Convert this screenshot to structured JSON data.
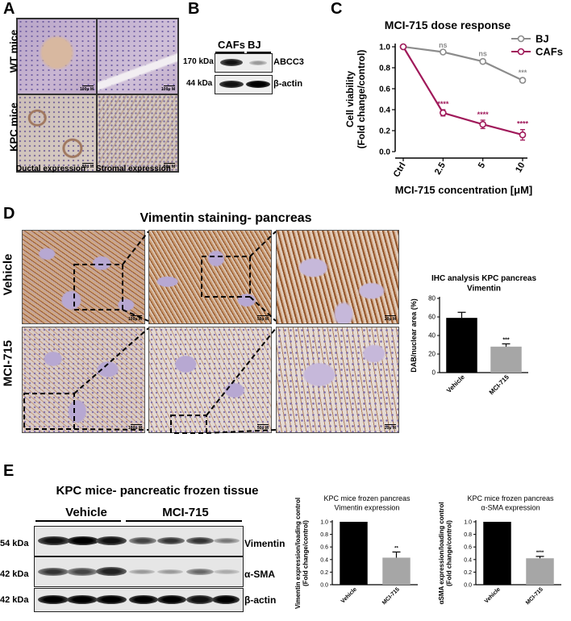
{
  "panels": {
    "A": "A",
    "B": "B",
    "C": "C",
    "D": "D",
    "E": "E"
  },
  "panel_a": {
    "row_labels": [
      "WT mice",
      "KPC mice"
    ],
    "col_labels": [
      "Ductal expression",
      "Stromal expression"
    ],
    "scalebars": [
      "100μ M",
      "100μ M",
      "50μ M",
      "50μ M"
    ]
  },
  "panel_b": {
    "columns": [
      "CAFs",
      "BJ"
    ],
    "rows": [
      {
        "mw": "170 kDa",
        "protein": "ABCC3"
      },
      {
        "mw": "44 kDa",
        "protein": "β-actin"
      }
    ]
  },
  "panel_d": {
    "title": "Vimentin staining- pancreas",
    "row_labels": [
      "Vehicle",
      "MCI-715"
    ],
    "scalebars": [
      "100μ M",
      "50μ M",
      "20μ M",
      "100μ M",
      "50μ M",
      "20μ M"
    ]
  },
  "panel_e": {
    "title": "KPC mice- pancreatic frozen tissue",
    "groups": [
      "Vehicle",
      "MCI-715"
    ],
    "rows": [
      {
        "mw": "54 kDa",
        "protein": "Vimentin"
      },
      {
        "mw": "42 kDa",
        "protein": "α-SMA"
      },
      {
        "mw": "42 kDa",
        "protein": "β-actin"
      }
    ]
  },
  "colors": {
    "bj": "#8c8c8c",
    "cafs": "#a0195a",
    "black_bar": "#000000",
    "grey_bar": "#a6a6a6",
    "stain_brown": "#9a5a2e",
    "stain_purple": "#a89ac4"
  },
  "chart_data": [
    {
      "id": "C",
      "type": "line",
      "title": "MCI-715 dose response",
      "xlabel": "MCI-715 concentration [μM]",
      "ylabel_lines": [
        "Cell viability",
        "(Fold change/control)"
      ],
      "categories": [
        "Ctrl",
        "2.5",
        "5",
        "10"
      ],
      "ylim": [
        0.0,
        1.0
      ],
      "yticks": [
        "0.0",
        "0.2",
        "0.4",
        "0.6",
        "0.8",
        "1.0"
      ],
      "series": [
        {
          "name": "BJ",
          "values": [
            1.0,
            0.95,
            0.86,
            0.68
          ],
          "errors": [
            0,
            0.01,
            0.02,
            0.02
          ],
          "sig": [
            "",
            "ns",
            "ns",
            "***"
          ]
        },
        {
          "name": "CAFs",
          "values": [
            1.0,
            0.37,
            0.26,
            0.16
          ],
          "errors": [
            0,
            0.03,
            0.04,
            0.05
          ],
          "sig": [
            "",
            "****",
            "****",
            "****"
          ]
        }
      ],
      "legend": "top-right"
    },
    {
      "id": "D",
      "type": "bar",
      "title_lines": [
        "IHC analysis KPC pancreas",
        "Vimentin"
      ],
      "ylabel": "DAB/nuclear area (%)",
      "categories": [
        "Vehicle",
        "MCI-715"
      ],
      "values": [
        59,
        28
      ],
      "errors": [
        6,
        3
      ],
      "sig": [
        "",
        "***"
      ],
      "ylim": [
        0,
        80
      ],
      "yticks": [
        "0",
        "20",
        "40",
        "60",
        "80"
      ]
    },
    {
      "id": "E1",
      "type": "bar",
      "title_lines": [
        "KPC mice frozen pancreas",
        "Vimentin expression"
      ],
      "ylabel_lines": [
        "Vimentin expression/loading control",
        "(Fold change/control)"
      ],
      "categories": [
        "Vehicle",
        "MCI-715"
      ],
      "values": [
        1.0,
        0.43
      ],
      "errors": [
        0,
        0.09
      ],
      "sig": [
        "",
        "**"
      ],
      "ylim": [
        0.0,
        1.0
      ],
      "yticks": [
        "0.0",
        "0.2",
        "0.4",
        "0.6",
        "0.8",
        "1.0"
      ]
    },
    {
      "id": "E2",
      "type": "bar",
      "title_lines": [
        "KPC mice frozen pancreas",
        "α-SMA expression"
      ],
      "ylabel_lines": [
        "αSMA expression/loading control",
        "(Fold change/control)"
      ],
      "categories": [
        "Vehicle",
        "MCI-715"
      ],
      "values": [
        1.0,
        0.42
      ],
      "errors": [
        0,
        0.03
      ],
      "sig": [
        "",
        "****"
      ],
      "ylim": [
        0.0,
        1.0
      ],
      "yticks": [
        "0.0",
        "0.2",
        "0.4",
        "0.6",
        "0.8",
        "1.0"
      ]
    }
  ]
}
